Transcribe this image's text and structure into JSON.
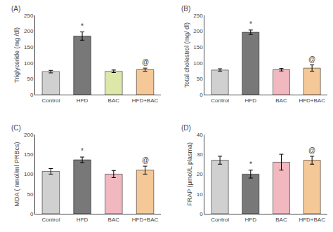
{
  "chart_data": [
    {
      "type": "bar",
      "title": "(A)",
      "ylabel": "Triglyceride (mg /dl)",
      "categories": [
        "Control",
        "HFD",
        "BAC",
        "HFD+BAC"
      ],
      "values": [
        73,
        185,
        74,
        79
      ],
      "errors": [
        4,
        13,
        4,
        5
      ],
      "colors": [
        "#d0d0d0",
        "#787878",
        "#dde8a8",
        "#f5c898"
      ],
      "ylim": [
        0,
        250
      ],
      "yticks": [
        0,
        50,
        100,
        150,
        200,
        250
      ],
      "grid": false,
      "annotations": [
        {
          "category": "HFD",
          "text": "*"
        },
        {
          "category": "HFD+BAC",
          "text": "@"
        }
      ]
    },
    {
      "type": "bar",
      "title": "(B)",
      "ylabel": "Total cholestrol (mg/ dl)",
      "categories": [
        "Control",
        "HFD",
        "BAC",
        "HFD+BAC"
      ],
      "values": [
        78,
        197,
        79,
        84
      ],
      "errors": [
        4,
        7,
        4,
        10
      ],
      "colors": [
        "#d0d0d0",
        "#787878",
        "#f2b8c0",
        "#f5c898"
      ],
      "ylim": [
        0,
        250
      ],
      "yticks": [
        0,
        50,
        100,
        150,
        200,
        250
      ],
      "grid": false,
      "annotations": [
        {
          "category": "HFD",
          "text": "*"
        },
        {
          "category": "HFD+BAC",
          "text": "@"
        }
      ]
    },
    {
      "type": "bar",
      "title": "(C)",
      "ylabel": "MDA ( nmol/ml PRBcs)",
      "categories": [
        "Control",
        "HFD",
        "BAC",
        "HFD+BAC"
      ],
      "values": [
        107,
        136,
        100,
        110
      ],
      "errors": [
        7,
        7,
        9,
        10
      ],
      "colors": [
        "#d0d0d0",
        "#787878",
        "#f2b8c0",
        "#f5c898"
      ],
      "ylim": [
        0,
        200
      ],
      "yticks": [
        0,
        50,
        100,
        150,
        200
      ],
      "grid": false,
      "annotations": [
        {
          "category": "HFD",
          "text": "*"
        },
        {
          "category": "HFD+BAC",
          "text": "@"
        }
      ]
    },
    {
      "type": "bar",
      "title": "(D)",
      "ylabel": "FRAP (μmol/L plasma)",
      "categories": [
        "Control",
        "HFD",
        "BAC",
        "HFD+BAC"
      ],
      "values": [
        27,
        20,
        26,
        27
      ],
      "errors": [
        2,
        2,
        4,
        2
      ],
      "colors": [
        "#d0d0d0",
        "#787878",
        "#f2b8c0",
        "#f5c898"
      ],
      "ylim": [
        0,
        40
      ],
      "yticks": [
        0,
        10,
        20,
        30,
        40
      ],
      "grid": false,
      "annotations": [
        {
          "category": "HFD",
          "text": "*"
        },
        {
          "category": "HFD+BAC",
          "text": "@"
        }
      ]
    }
  ]
}
